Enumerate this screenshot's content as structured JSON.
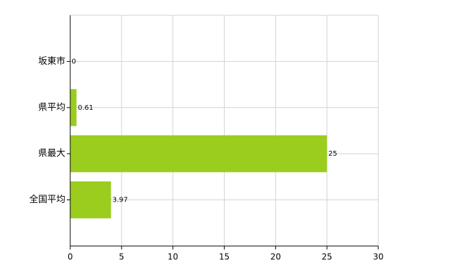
{
  "chart_data": {
    "type": "bar",
    "orientation": "horizontal",
    "categories": [
      "坂東市",
      "県平均",
      "県最大",
      "全国平均"
    ],
    "values": [
      0,
      0.61,
      25,
      3.97
    ],
    "color": "#9acd1e",
    "xlim": [
      0,
      30
    ],
    "xticks": [
      0,
      5,
      10,
      15,
      20,
      25,
      30
    ],
    "grid": true
  }
}
